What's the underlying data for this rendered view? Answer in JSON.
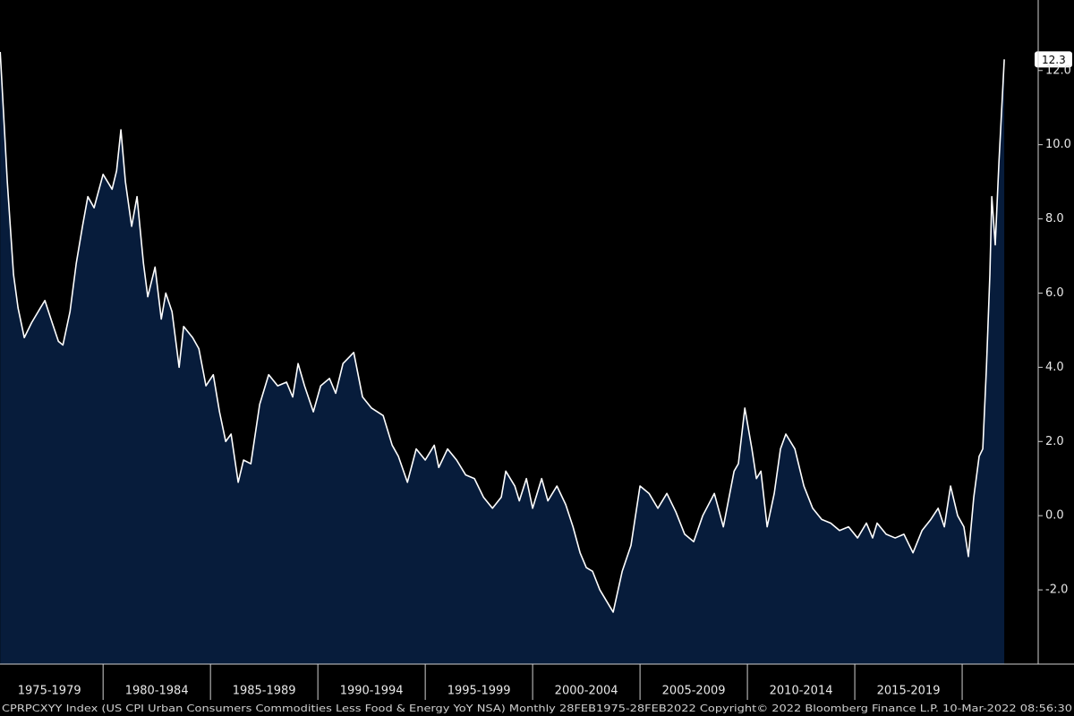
{
  "chart_data": {
    "type": "area",
    "footer": "CPRPCXYY Index (US CPI Urban Consumers Commodities Less Food & Energy YoY NSA) Monthly 28FEB1975-28FEB2022 Copyright© 2022 Bloomberg Finance L.P. 10-Mar-2022 08:56:30",
    "xlim": [
      1975.2,
      2023.54
    ],
    "ylim": [
      -4,
      13.9
    ],
    "xticks": [
      {
        "value": 1977.5,
        "label": "1975-1979"
      },
      {
        "value": 1982.5,
        "label": "1980-1984"
      },
      {
        "value": 1987.5,
        "label": "1985-1989"
      },
      {
        "value": 1992.5,
        "label": "1990-1994"
      },
      {
        "value": 1997.5,
        "label": "1995-1999"
      },
      {
        "value": 2002.5,
        "label": "2000-2004"
      },
      {
        "value": 2007.5,
        "label": "2005-2009"
      },
      {
        "value": 2012.5,
        "label": "2010-2014"
      },
      {
        "value": 2017.5,
        "label": "2015-2019"
      }
    ],
    "yticks": [
      {
        "value": -2,
        "label": "-2.0"
      },
      {
        "value": 0,
        "label": "0.0"
      },
      {
        "value": 2,
        "label": "2.0"
      },
      {
        "value": 4,
        "label": "4.0"
      },
      {
        "value": 6,
        "label": "6.0"
      },
      {
        "value": 8,
        "label": "8.0"
      },
      {
        "value": 10,
        "label": "10.0"
      },
      {
        "value": 12,
        "label": "12.0"
      }
    ],
    "series": [
      {
        "color": "#ffffff",
        "fill": "#071c3b",
        "x": [
          1975.21,
          1975.54,
          1975.83,
          1976.04,
          1976.33,
          1976.67,
          1977.08,
          1977.29,
          1977.63,
          1977.92,
          1978.13,
          1978.46,
          1978.75,
          1979.04,
          1979.29,
          1979.58,
          1980.0,
          1980.42,
          1980.63,
          1980.83,
          1981.04,
          1981.33,
          1981.58,
          1981.88,
          1982.08,
          1982.42,
          1982.71,
          1982.92,
          1983.21,
          1983.54,
          1983.75,
          1984.17,
          1984.46,
          1984.79,
          1985.13,
          1985.42,
          1985.71,
          1985.96,
          1986.29,
          1986.54,
          1986.88,
          1987.29,
          1987.71,
          1988.13,
          1988.54,
          1988.83,
          1989.08,
          1989.38,
          1989.79,
          1990.13,
          1990.54,
          1990.83,
          1991.17,
          1991.67,
          1992.08,
          1992.5,
          1993.04,
          1993.46,
          1993.75,
          1994.17,
          1994.58,
          1995.0,
          1995.42,
          1995.63,
          1996.04,
          1996.46,
          1996.88,
          1997.29,
          1997.71,
          1998.13,
          1998.54,
          1998.75,
          1999.17,
          1999.38,
          1999.71,
          2000.0,
          2000.42,
          2000.71,
          2001.13,
          2001.54,
          2001.88,
          2002.21,
          2002.5,
          2002.79,
          2003.13,
          2003.75,
          2004.17,
          2004.58,
          2005.0,
          2005.42,
          2005.83,
          2006.25,
          2006.67,
          2007.08,
          2007.5,
          2007.92,
          2008.46,
          2008.88,
          2009.38,
          2009.58,
          2009.88,
          2010.21,
          2010.42,
          2010.63,
          2010.92,
          2011.25,
          2011.54,
          2011.79,
          2012.21,
          2012.63,
          2013.04,
          2013.46,
          2013.88,
          2014.29,
          2014.71,
          2015.13,
          2015.54,
          2015.83,
          2016.04,
          2016.46,
          2016.88,
          2017.29,
          2017.71,
          2018.13,
          2018.54,
          2018.88,
          2019.17,
          2019.46,
          2019.79,
          2020.08,
          2020.29,
          2020.54,
          2020.79,
          2020.96,
          2021.13,
          2021.29,
          2021.38,
          2021.54,
          2021.71,
          2021.96
        ],
        "values": [
          12.5,
          9,
          6.5,
          5.6,
          4.8,
          5.2,
          5.6,
          5.8,
          5.2,
          4.7,
          4.6,
          5.5,
          6.8,
          7.8,
          8.6,
          8.3,
          9.2,
          8.8,
          9.3,
          10.4,
          9.0,
          7.8,
          8.6,
          6.8,
          5.9,
          6.7,
          5.3,
          6.0,
          5.5,
          4.0,
          5.1,
          4.8,
          4.5,
          3.5,
          3.8,
          2.8,
          2.0,
          2.2,
          0.9,
          1.5,
          1.4,
          3.0,
          3.8,
          3.5,
          3.6,
          3.2,
          4.1,
          3.5,
          2.8,
          3.5,
          3.7,
          3.3,
          4.1,
          4.4,
          3.2,
          2.9,
          2.7,
          1.9,
          1.6,
          0.9,
          1.8,
          1.5,
          1.9,
          1.3,
          1.8,
          1.5,
          1.1,
          1.0,
          0.5,
          0.2,
          0.5,
          1.2,
          0.8,
          0.4,
          1.0,
          0.2,
          1.0,
          0.4,
          0.8,
          0.3,
          -0.3,
          -1.0,
          -1.4,
          -1.5,
          -2.0,
          -2.6,
          -1.5,
          -0.8,
          0.8,
          0.6,
          0.2,
          0.6,
          0.1,
          -0.5,
          -0.7,
          0.0,
          0.6,
          -0.3,
          1.2,
          1.4,
          2.9,
          1.8,
          1.0,
          1.2,
          -0.3,
          0.6,
          1.8,
          2.2,
          1.8,
          0.8,
          0.2,
          -0.1,
          -0.2,
          -0.4,
          -0.3,
          -0.6,
          -0.2,
          -0.6,
          -0.2,
          -0.5,
          -0.6,
          -0.5,
          -1.0,
          -0.4,
          -0.1,
          0.2,
          -0.3,
          0.8,
          0.0,
          -0.3,
          -1.1,
          0.5,
          1.6,
          1.8,
          4.0,
          6.5,
          8.6,
          7.3,
          9.5,
          12.3
        ]
      }
    ]
  }
}
